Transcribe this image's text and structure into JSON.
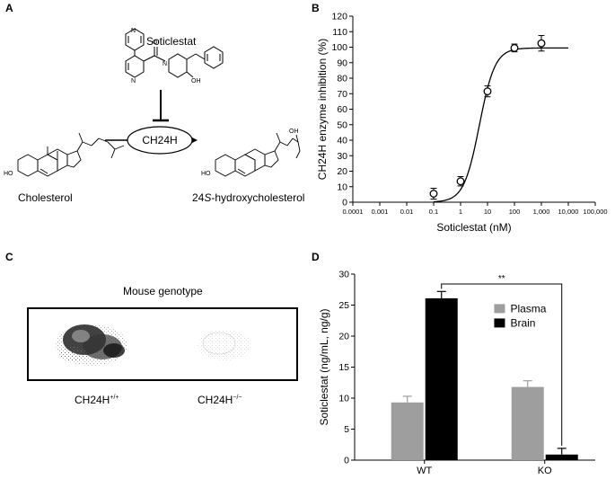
{
  "panels": {
    "a": {
      "label": "A",
      "drug_name": "Soticlestat",
      "enzyme": "CH24H",
      "substrate": "Cholesterol",
      "product_prefix": "24",
      "product_italic": "S",
      "product_suffix": "-hydroxycholesterol",
      "oh_label_substrate": "HO",
      "oh_label_product": "HO",
      "oh_label_sidechain": "OH",
      "oh_label_piperidine": "OH",
      "n_labels": [
        "N",
        "N",
        "N"
      ],
      "o_label": "O"
    },
    "b": {
      "label": "B"
    },
    "c": {
      "label": "C",
      "title": "Mouse genotype",
      "genotype_wt_base": "CH24H",
      "genotype_wt_sup": "+/+",
      "genotype_ko_base": "CH24H",
      "genotype_ko_sup": "−/−"
    },
    "d": {
      "label": "D"
    }
  },
  "chart_data": [
    {
      "type": "scatter",
      "panel": "B",
      "xlabel": "Soticlestat (nM)",
      "ylabel": "CH24H enzyme inhibition (%)",
      "x_scale": "log",
      "xlim": [
        0.0001,
        100000
      ],
      "ylim": [
        0,
        120
      ],
      "x_tick_values": [
        0.0001,
        0.001,
        0.01,
        0.1,
        1,
        10,
        100,
        1000,
        10000,
        100000
      ],
      "x_tick_labels": [
        "0.0001",
        "0.001",
        "0.01",
        "0.1",
        "1",
        "10",
        "100",
        "1,000",
        "10,000",
        "100,000"
      ],
      "y_ticks": [
        0,
        10,
        20,
        30,
        40,
        50,
        60,
        70,
        80,
        90,
        100,
        110,
        120
      ],
      "grid": false,
      "points": [
        {
          "x": 0.1,
          "y": 5.5,
          "err": 3.5
        },
        {
          "x": 1,
          "y": 13.5,
          "err": 3
        },
        {
          "x": 10,
          "y": 71.5,
          "err": 3.5
        },
        {
          "x": 100,
          "y": 99.5,
          "err": 2.5
        },
        {
          "x": 1000,
          "y": 102.5,
          "err": 5
        }
      ],
      "fit": {
        "bottom": 0,
        "top": 99.5,
        "ic50": 5,
        "hill": 1.5
      }
    },
    {
      "type": "bar",
      "panel": "D",
      "categories": [
        "WT",
        "KO"
      ],
      "series": [
        {
          "name": "Plasma",
          "values": [
            9.3,
            11.8
          ],
          "errors": [
            1.0,
            1.0
          ],
          "color": "#9e9e9e"
        },
        {
          "name": "Brain",
          "values": [
            26.1,
            0.9
          ],
          "errors": [
            1.1,
            1.0
          ],
          "color": "#000000"
        }
      ],
      "ylabel": "Soticlestat (ng/mL, ng/g)",
      "xlabel": "",
      "ylim": [
        0,
        30
      ],
      "y_ticks": [
        0,
        5,
        10,
        15,
        20,
        25,
        30
      ],
      "significance": "**",
      "legend_position": "upper-right",
      "grid": false
    }
  ],
  "colors": {
    "plasma": "#9e9e9e",
    "brain": "#000000",
    "axis": "#000000"
  }
}
